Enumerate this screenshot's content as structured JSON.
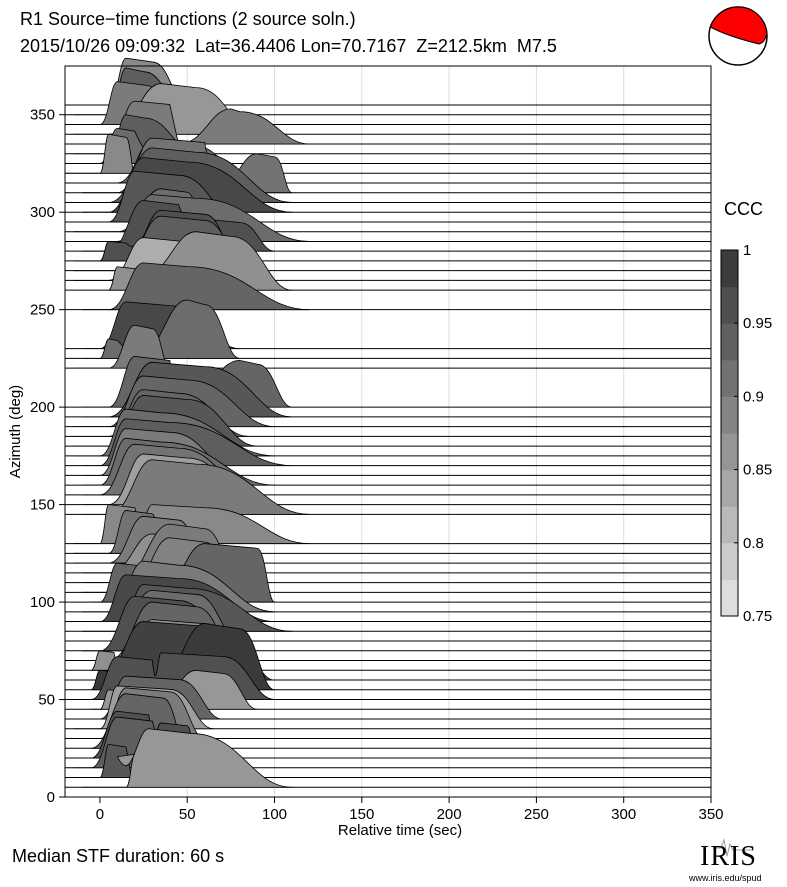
{
  "header": {
    "title": "R1 Source−time functions (2 source soln.)",
    "subtitle": "2015/10/26 09:09:32  Lat=36.4406 Lon=70.7167  Z=212.5km  M7.5"
  },
  "footer": {
    "median_text": "Median STF duration: 60 s",
    "logo_text": "IRIS",
    "logo_url": "www.iris.edu/spud"
  },
  "colorbar": {
    "label": "CCC",
    "ticks": [
      "1",
      "0.95",
      "0.9",
      "0.85",
      "0.8",
      "0.75"
    ],
    "range": [
      0.75,
      1.0
    ]
  },
  "colors": {
    "beachball_fill": "#ff0000",
    "low_ccc": "#e6e6e6",
    "high_ccc": "#333333"
  },
  "chart_data": {
    "type": "area",
    "title": "R1 Source−time functions (2 source soln.)",
    "xlabel": "Relative time (sec)",
    "ylabel": "Azimuth (deg)",
    "xlim": [
      -20,
      350
    ],
    "ylim": [
      0,
      375
    ],
    "xticks": [
      "0",
      "50",
      "100",
      "150",
      "200",
      "250",
      "300",
      "350"
    ],
    "yticks": [
      "0",
      "50",
      "100",
      "150",
      "200",
      "250",
      "300",
      "350"
    ],
    "xtick_values": [
      0,
      50,
      100,
      150,
      200,
      250,
      300,
      350
    ],
    "ytick_values": [
      0,
      50,
      100,
      150,
      200,
      250,
      300,
      350
    ],
    "vertical_gridlines": [
      50,
      100,
      150,
      200,
      250,
      300,
      350
    ],
    "median_duration_sec": 60,
    "traces": [
      {
        "az": 5,
        "ccc": 0.86,
        "start": -10,
        "pulses": [
          [
            20,
            5,
            10,
            17
          ],
          [
            28,
            22,
            52,
            30
          ]
        ],
        "end": 110
      },
      {
        "az": 10,
        "ccc": 0.95,
        "start": -15,
        "pulses": [
          [
            5,
            5,
            15,
            17
          ],
          [
            30,
            12,
            42,
            24
          ]
        ],
        "end": 60
      },
      {
        "az": 15,
        "ccc": 0.94,
        "start": -15,
        "pulses": [
          [
            10,
            15,
            30,
            26
          ],
          [
            45,
            18,
            58,
            12
          ]
        ],
        "end": 70
      },
      {
        "az": 20,
        "ccc": 0.96,
        "start": -10,
        "pulses": [
          [
            10,
            15,
            28,
            24
          ],
          [
            35,
            12,
            50,
            18
          ]
        ],
        "end": 55
      },
      {
        "az": 25,
        "ccc": 0.93,
        "start": -5,
        "pulses": [
          [
            15,
            20,
            36,
            28
          ]
        ],
        "end": 50
      },
      {
        "az": 30,
        "ccc": 0.9,
        "start": -10,
        "pulses": [
          [
            15,
            15,
            40,
            26
          ]
        ],
        "end": 60
      },
      {
        "az": 35,
        "ccc": 0.85,
        "start": -15,
        "pulses": [
          [
            10,
            10,
            40,
            22
          ]
        ],
        "end": 65
      },
      {
        "az": 40,
        "ccc": 0.93,
        "start": -15,
        "pulses": [
          [
            15,
            15,
            45,
            22
          ]
        ],
        "end": 70
      },
      {
        "az": 45,
        "ccc": 0.86,
        "start": -5,
        "pulses": [
          [
            5,
            5,
            12,
            10
          ],
          [
            55,
            25,
            70,
            20
          ]
        ],
        "end": 90
      },
      {
        "az": 50,
        "ccc": 0.96,
        "start": -5,
        "pulses": [
          [
            10,
            15,
            30,
            22
          ],
          [
            35,
            20,
            70,
            24
          ]
        ],
        "end": 100
      },
      {
        "az": 55,
        "ccc": 0.99,
        "start": -5,
        "pulses": [
          [
            0,
            5,
            10,
            10
          ],
          [
            60,
            30,
            80,
            34
          ]
        ],
        "end": 100
      },
      {
        "az": 60,
        "ccc": 0.98,
        "start": -5,
        "pulses": [
          [
            25,
            25,
            60,
            30
          ],
          [
            70,
            20,
            80,
            15
          ]
        ],
        "end": 100
      },
      {
        "az": 65,
        "ccc": 0.87,
        "start": -5,
        "pulses": [
          [
            0,
            5,
            8,
            10
          ],
          [
            30,
            20,
            60,
            26
          ]
        ],
        "end": 90
      },
      {
        "az": 70,
        "ccc": 0.93,
        "start": -5,
        "pulses": [
          [
            30,
            25,
            55,
            30
          ]
        ],
        "end": 80
      },
      {
        "az": 75,
        "ccc": 0.96,
        "start": -10,
        "pulses": [
          [
            20,
            20,
            45,
            28
          ]
        ],
        "end": 80
      },
      {
        "az": 80,
        "ccc": 0.92,
        "start": -10,
        "pulses": [
          [
            30,
            25,
            55,
            26
          ]
        ],
        "end": 80
      },
      {
        "az": 85,
        "ccc": 0.95,
        "start": -10,
        "pulses": [
          [
            25,
            15,
            50,
            24
          ]
        ],
        "end": 110
      },
      {
        "az": 90,
        "ccc": 0.97,
        "start": -10,
        "pulses": [
          [
            15,
            15,
            45,
            24
          ]
        ],
        "end": 100
      },
      {
        "az": 95,
        "ccc": 0.9,
        "start": -10,
        "pulses": [
          [
            25,
            20,
            45,
            26
          ]
        ],
        "end": 100
      },
      {
        "az": 100,
        "ccc": 0.93,
        "start": -5,
        "pulses": [
          [
            10,
            10,
            25,
            20
          ],
          [
            60,
            30,
            90,
            30
          ]
        ],
        "end": 100
      },
      {
        "az": 105,
        "ccc": 0.89,
        "start": -10,
        "pulses": [
          [
            40,
            25,
            60,
            28
          ]
        ],
        "end": 80
      },
      {
        "az": 110,
        "ccc": 0.9,
        "start": -10,
        "pulses": [
          [
            40,
            30,
            60,
            30
          ]
        ],
        "end": 80
      },
      {
        "az": 115,
        "ccc": 0.87,
        "start": -10,
        "pulses": [
          [
            30,
            25,
            50,
            20
          ]
        ],
        "end": 80
      },
      {
        "az": 120,
        "ccc": 0.9,
        "start": -15,
        "pulses": [
          [
            25,
            20,
            45,
            24
          ]
        ],
        "end": 60
      },
      {
        "az": 125,
        "ccc": 0.91,
        "start": -15,
        "pulses": [
          [
            15,
            10,
            30,
            22
          ]
        ],
        "end": 35
      },
      {
        "az": 130,
        "ccc": 0.88,
        "start": -15,
        "pulses": [
          [
            5,
            5,
            20,
            20
          ],
          [
            30,
            25,
            60,
            20
          ]
        ],
        "end": 120
      },
      {
        "az": 145,
        "ccc": 0.9,
        "start": -10,
        "pulses": [
          [
            30,
            25,
            55,
            28
          ]
        ],
        "end": 120
      },
      {
        "az": 150,
        "ccc": 0.85,
        "start": -10,
        "pulses": [
          [
            25,
            20,
            50,
            26
          ]
        ],
        "end": 90
      },
      {
        "az": 155,
        "ccc": 0.91,
        "start": -10,
        "pulses": [
          [
            20,
            20,
            45,
            26
          ]
        ],
        "end": 90
      },
      {
        "az": 160,
        "ccc": 0.92,
        "start": -10,
        "pulses": [
          [
            15,
            15,
            35,
            24
          ]
        ],
        "end": 100
      },
      {
        "az": 165,
        "ccc": 0.9,
        "start": -10,
        "pulses": [
          [
            15,
            15,
            40,
            24
          ]
        ],
        "end": 80
      },
      {
        "az": 170,
        "ccc": 0.94,
        "start": -10,
        "pulses": [
          [
            15,
            15,
            40,
            24
          ]
        ],
        "end": 110
      },
      {
        "az": 175,
        "ccc": 0.92,
        "start": -15,
        "pulses": [
          [
            15,
            15,
            35,
            24
          ]
        ],
        "end": 100
      },
      {
        "az": 180,
        "ccc": 0.95,
        "start": -15,
        "pulses": [
          [
            25,
            20,
            50,
            26
          ]
        ],
        "end": 90
      },
      {
        "az": 185,
        "ccc": 0.93,
        "start": -15,
        "pulses": [
          [
            25,
            20,
            45,
            24
          ]
        ],
        "end": 85
      },
      {
        "az": 190,
        "ccc": 0.93,
        "start": -15,
        "pulses": [
          [
            25,
            20,
            50,
            26
          ]
        ],
        "end": 100
      },
      {
        "az": 195,
        "ccc": 0.95,
        "start": -10,
        "pulses": [
          [
            30,
            25,
            60,
            28
          ]
        ],
        "end": 110
      },
      {
        "az": 200,
        "ccc": 0.93,
        "start": -10,
        "pulses": [
          [
            20,
            15,
            40,
            26
          ],
          [
            80,
            35,
            90,
            24
          ]
        ],
        "end": 110
      },
      {
        "az": 220,
        "ccc": 0.9,
        "start": -15,
        "pulses": [
          [
            20,
            15,
            30,
            22
          ]
        ],
        "end": 40
      },
      {
        "az": 225,
        "ccc": 0.92,
        "start": -10,
        "pulses": [
          [
            5,
            5,
            10,
            10
          ],
          [
            50,
            30,
            60,
            30
          ]
        ],
        "end": 80
      },
      {
        "az": 230,
        "ccc": 0.97,
        "start": -10,
        "pulses": [
          [
            15,
            15,
            40,
            24
          ]
        ],
        "end": 80
      },
      {
        "az": 250,
        "ccc": 0.93,
        "start": -10,
        "pulses": [
          [
            25,
            20,
            50,
            24
          ]
        ],
        "end": 120
      },
      {
        "az": 260,
        "ccc": 0.87,
        "start": 5,
        "pulses": [
          [
            10,
            10,
            20,
            12
          ],
          [
            55,
            40,
            75,
            30
          ]
        ],
        "end": 110
      },
      {
        "az": 265,
        "ccc": 0.83,
        "start": -15,
        "pulses": [
          [
            25,
            20,
            45,
            22
          ]
        ],
        "end": 55
      },
      {
        "az": 270,
        "ccc": 0.94,
        "start": -15,
        "pulses": [
          [
            35,
            25,
            60,
            28
          ]
        ],
        "end": 85
      },
      {
        "az": 275,
        "ccc": 0.96,
        "start": -15,
        "pulses": [
          [
            5,
            5,
            15,
            10
          ],
          [
            35,
            25,
            60,
            26
          ]
        ],
        "end": 80
      },
      {
        "az": 280,
        "ccc": 0.96,
        "start": -10,
        "pulses": [
          [
            25,
            20,
            45,
            26
          ],
          [
            65,
            20,
            80,
            16
          ]
        ],
        "end": 100
      },
      {
        "az": 285,
        "ccc": 0.92,
        "start": -10,
        "pulses": [
          [
            30,
            20,
            55,
            24
          ]
        ],
        "end": 120
      },
      {
        "az": 290,
        "ccc": 0.92,
        "start": -15,
        "pulses": [
          [
            35,
            25,
            50,
            22
          ]
        ],
        "end": 60
      },
      {
        "az": 295,
        "ccc": 0.95,
        "start": -10,
        "pulses": [
          [
            20,
            15,
            45,
            26
          ]
        ],
        "end": 80
      },
      {
        "az": 300,
        "ccc": 0.97,
        "start": -10,
        "pulses": [
          [
            25,
            20,
            50,
            28
          ]
        ],
        "end": 110
      },
      {
        "az": 305,
        "ccc": 0.94,
        "start": -10,
        "pulses": [
          [
            30,
            25,
            55,
            28
          ]
        ],
        "end": 110
      },
      {
        "az": 310,
        "ccc": 0.91,
        "start": -10,
        "pulses": [
          [
            30,
            20,
            60,
            28
          ],
          [
            90,
            25,
            100,
            20
          ]
        ],
        "end": 110
      },
      {
        "az": 315,
        "ccc": 0.92,
        "start": -15,
        "pulses": [
          [
            30,
            20,
            50,
            22
          ]
        ],
        "end": 90
      },
      {
        "az": 320,
        "ccc": 0.88,
        "start": -20,
        "pulses": [
          [
            5,
            5,
            15,
            20
          ]
        ],
        "end": 20
      },
      {
        "az": 325,
        "ccc": 0.92,
        "start": -15,
        "pulses": [
          [
            10,
            10,
            20,
            18
          ],
          [
            35,
            20,
            40,
            10
          ]
        ],
        "end": 55
      },
      {
        "az": 330,
        "ccc": 0.94,
        "start": -15,
        "pulses": [
          [
            15,
            10,
            25,
            20
          ]
        ],
        "end": 55
      },
      {
        "az": 335,
        "ccc": 0.9,
        "start": -15,
        "pulses": [
          [
            20,
            15,
            40,
            22
          ],
          [
            75,
            30,
            80,
            18
          ]
        ],
        "end": 120
      },
      {
        "az": 340,
        "ccc": 0.86,
        "start": -15,
        "pulses": [
          [
            35,
            30,
            55,
            26
          ]
        ],
        "end": 90
      },
      {
        "az": 345,
        "ccc": 0.9,
        "start": -15,
        "pulses": [
          [
            10,
            10,
            25,
            22
          ]
        ],
        "end": 50
      },
      {
        "az": 350,
        "ccc": 0.94,
        "start": -15,
        "pulses": [
          [
            15,
            10,
            25,
            24
          ]
        ],
        "end": 50
      },
      {
        "az": 355,
        "ccc": 0.88,
        "start": -10,
        "pulses": [
          [
            15,
            10,
            30,
            24
          ]
        ],
        "end": 50
      }
    ]
  }
}
